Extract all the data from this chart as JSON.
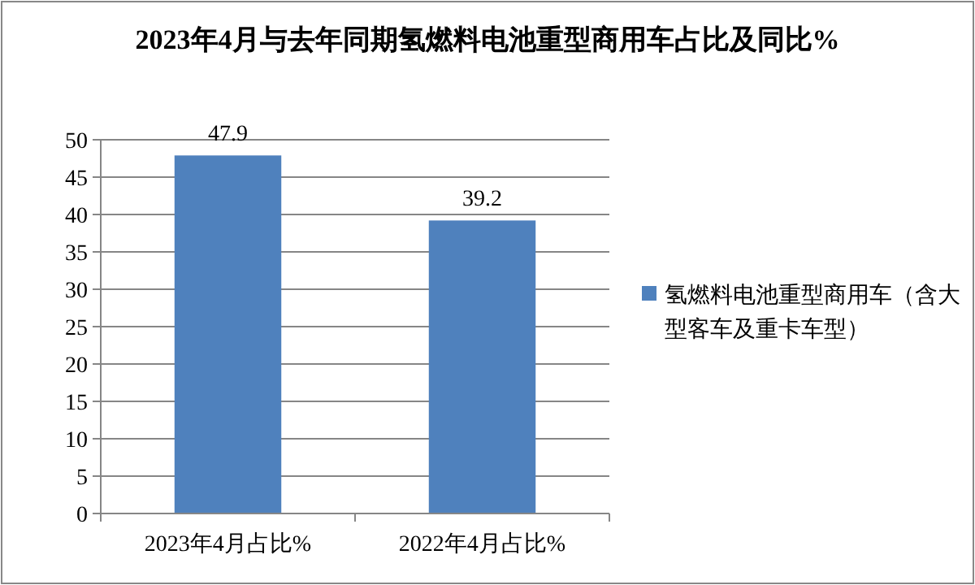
{
  "chart_data": {
    "type": "bar",
    "title": "2023年4月与去年同期氢燃料电池重型商用车占比及同比%",
    "categories": [
      "2023年4月占比%",
      "2022年4月占比%"
    ],
    "series": [
      {
        "name": "氢燃料电池重型商用车（含大型客车及重卡车型）",
        "color": "#4f81bd",
        "values": [
          47.9,
          39.2
        ]
      }
    ],
    "ylim": [
      0,
      50
    ],
    "yticks": [
      0,
      5,
      10,
      15,
      20,
      25,
      30,
      35,
      40,
      45,
      50
    ],
    "grid": "y",
    "legend": "right",
    "data_labels": true
  }
}
